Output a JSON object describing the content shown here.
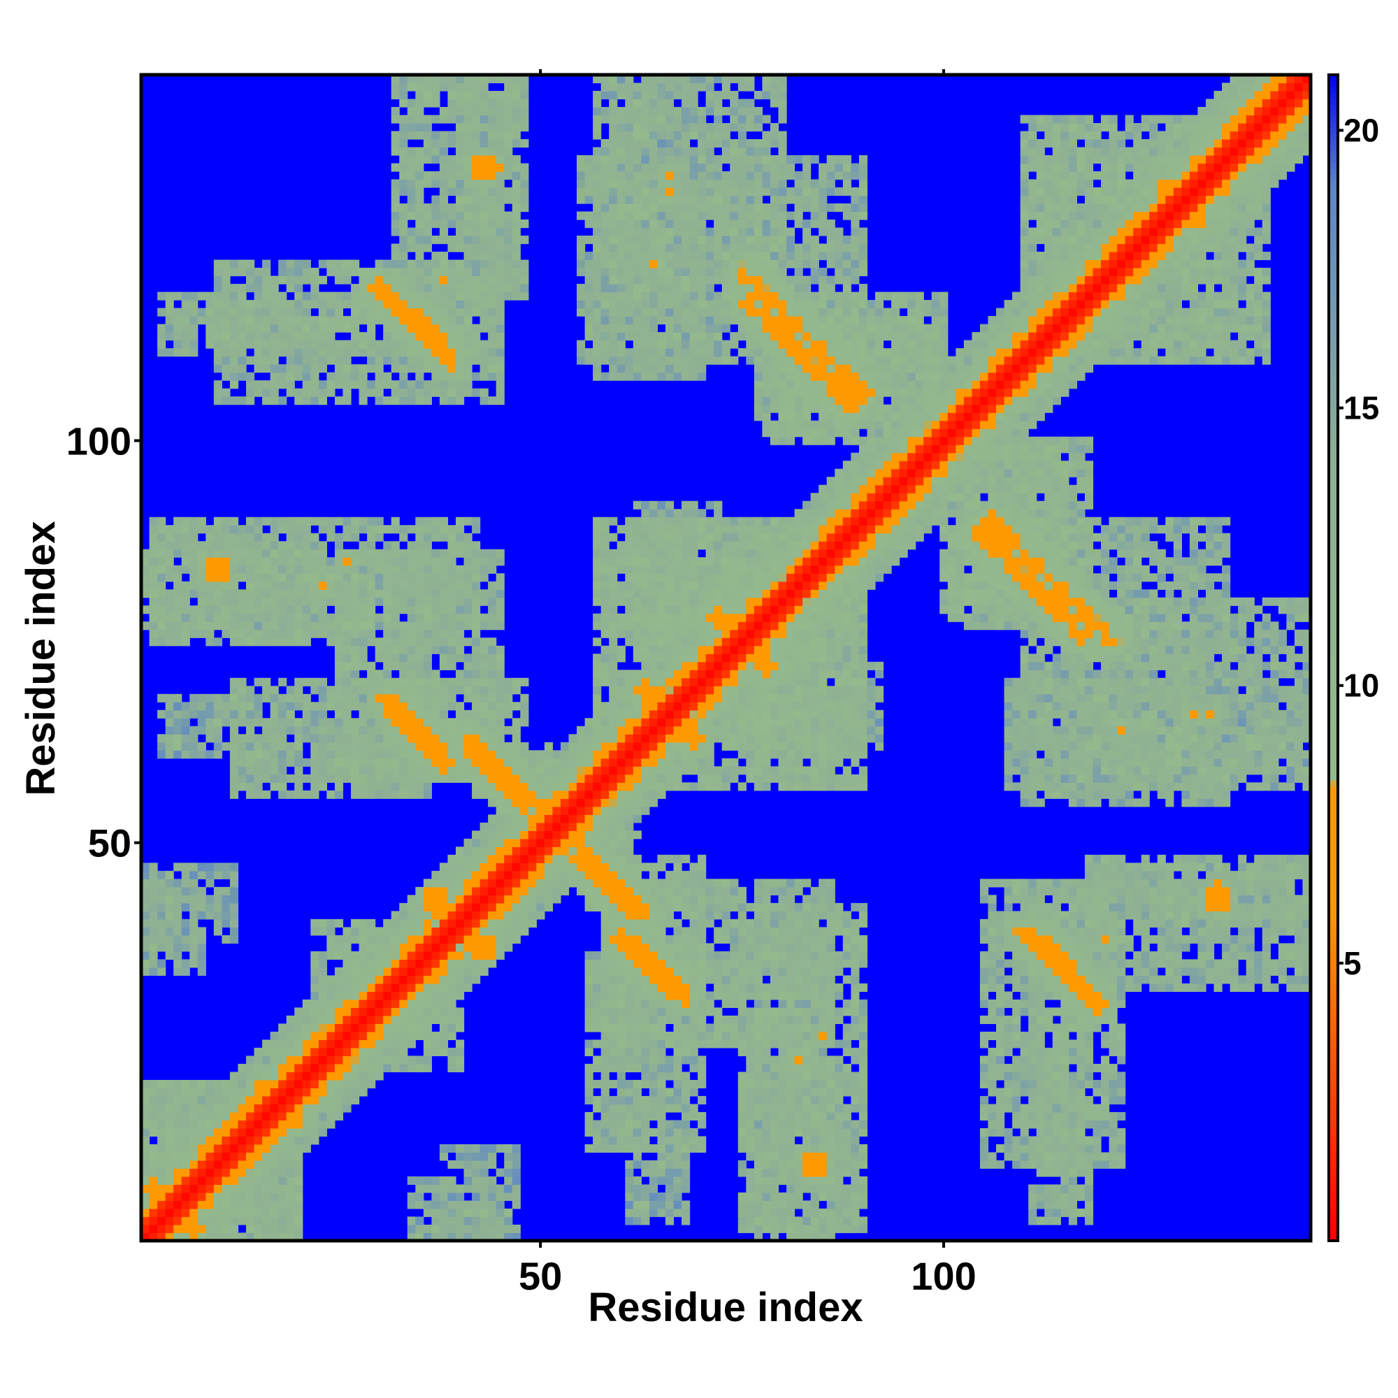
{
  "chart_data": {
    "type": "heatmap",
    "title": "",
    "xlabel": "Residue index",
    "ylabel": "Residue index",
    "n_residues": 145,
    "xlim": [
      0.5,
      145.5
    ],
    "ylim": [
      0.5,
      145.5
    ],
    "x_ticks": [
      {
        "value": 50,
        "label": "50"
      },
      {
        "value": 100,
        "label": "100"
      }
    ],
    "y_ticks": [
      {
        "value": 50,
        "label": "50"
      },
      {
        "value": 100,
        "label": "100"
      }
    ],
    "colorbar": {
      "range": [
        0,
        21
      ],
      "ticks": [
        {
          "value": 5,
          "label": "5"
        },
        {
          "value": 10,
          "label": "10"
        },
        {
          "value": 15,
          "label": "15"
        },
        {
          "value": 20,
          "label": "20"
        }
      ],
      "stops": [
        {
          "value": 0,
          "color": "#ff0000"
        },
        {
          "value": 6,
          "color": "#ff9900"
        },
        {
          "value": 8.2,
          "color": "#ff9900"
        },
        {
          "value": 8.3,
          "color": "#94b98c"
        },
        {
          "value": 14,
          "color": "#8fb094"
        },
        {
          "value": 19,
          "color": "#5b86c9"
        },
        {
          "value": 21,
          "color": "#0000ff"
        }
      ]
    },
    "cap_value": 21,
    "diagonal_band": {
      "center": 0,
      "half_width": 2.2
    },
    "regions": [
      {
        "x": [
          1,
          20
        ],
        "y": [
          1,
          20
        ],
        "level": 12.5
      },
      {
        "x": [
          22,
          38
        ],
        "y": [
          28,
          40
        ],
        "level": 12
      },
      {
        "x": [
          34,
          44
        ],
        "y": [
          1,
          8
        ],
        "level": 14.5
      },
      {
        "x": [
          1,
          12
        ],
        "y": [
          38,
          47
        ],
        "level": 15
      },
      {
        "x": [
          12,
          36
        ],
        "y": [
          56,
          70
        ],
        "level": 13
      },
      {
        "x": [
          3,
          12
        ],
        "y": [
          61,
          68
        ],
        "level": 15
      },
      {
        "x": [
          1,
          45
        ],
        "y": [
          77,
          86
        ],
        "level": 13
      },
      {
        "x": [
          34,
          48
        ],
        "y": [
          59,
          70
        ],
        "level": 11.5
      },
      {
        "x": [
          3,
          45
        ],
        "y": [
          111,
          118
        ],
        "level": 13
      },
      {
        "x": [
          32,
          47
        ],
        "y": [
          118,
          145
        ],
        "level": 13
      },
      {
        "x": [
          57,
          80
        ],
        "y": [
          115,
          145
        ],
        "level": 13.5
      },
      {
        "x": [
          56,
          62
        ],
        "y": [
          42,
          51
        ],
        "level": 11
      },
      {
        "x": [
          58,
          75
        ],
        "y": [
          25,
          45
        ],
        "level": 12.5
      },
      {
        "x": [
          75,
          90
        ],
        "y": [
          2,
          42
        ],
        "level": 12.5
      },
      {
        "x": [
          105,
          122
        ],
        "y": [
          10,
          45
        ],
        "level": 13
      },
      {
        "x": [
          118,
          145
        ],
        "y": [
          40,
          48
        ],
        "level": 13
      },
      {
        "x": [
          108,
          130
        ],
        "y": [
          57,
          70
        ],
        "level": 13.5
      },
      {
        "x": [
          125,
          145
        ],
        "y": [
          59,
          65
        ],
        "level": 14.5
      },
      {
        "x": [
          100,
          115
        ],
        "y": [
          79,
          100
        ],
        "level": 11.5
      },
      {
        "x": [
          110,
          135
        ],
        "y": [
          55,
          90
        ],
        "level": 13.5
      },
      {
        "x": [
          77,
          100
        ],
        "y": [
          101,
          118
        ],
        "level": 12.5
      },
      {
        "x": [
          110,
          135
        ],
        "y": [
          112,
          140
        ],
        "level": 12.5
      },
      {
        "x": [
          57,
          85
        ],
        "y": [
          62,
          90
        ],
        "level": 12
      },
      {
        "x": [
          85,
          92
        ],
        "y": [
          62,
          72
        ],
        "level": 14.5
      },
      {
        "x": [
          62,
          90
        ],
        "y": [
          75,
          90
        ],
        "level": 13
      }
    ],
    "strips": [
      {
        "x": [
          106,
          121
        ],
        "y": [
          75,
          90
        ],
        "value": 6.8,
        "halo": 8.5
      },
      {
        "x": [
          76,
          89
        ],
        "y": [
          104,
          117
        ],
        "value": 6.8,
        "halo": 8.5
      },
      {
        "x": [
          30,
          38
        ],
        "y": [
          112,
          119
        ],
        "value": 6.5,
        "halo": 9
      },
      {
        "x": [
          31,
          37
        ],
        "y": [
          62,
          68
        ],
        "value": 6.5,
        "halo": 9
      },
      {
        "x": [
          41,
          48
        ],
        "y": [
          55,
          62
        ],
        "value": 6.5,
        "halo": 9
      },
      {
        "x": [
          55,
          62
        ],
        "y": [
          42,
          49
        ],
        "value": 6.5,
        "halo": 9
      },
      {
        "x": [
          60,
          66
        ],
        "y": [
          32,
          38
        ],
        "value": 6.5,
        "halo": 9
      },
      {
        "x": [
          110,
          118
        ],
        "y": [
          31,
          39
        ],
        "value": 6.5,
        "halo": 9
      }
    ],
    "spots": [
      {
        "x": 43,
        "y": 134,
        "value": 6.5,
        "r": 1.5
      },
      {
        "x": 38,
        "y": 120,
        "value": 6.0,
        "r": 0.8
      },
      {
        "x": 10,
        "y": 84,
        "value": 6.0,
        "r": 1.5
      },
      {
        "x": 26,
        "y": 85,
        "value": 6.0,
        "r": 0.8
      },
      {
        "x": 84,
        "y": 10,
        "value": 6.0,
        "r": 1.5
      },
      {
        "x": 82,
        "y": 23,
        "value": 6.0,
        "r": 0.8
      },
      {
        "x": 37,
        "y": 43,
        "value": 6.5,
        "r": 1.5
      },
      {
        "x": 42,
        "y": 38,
        "value": 6.0,
        "r": 1.0
      },
      {
        "x": 134,
        "y": 44,
        "value": 6.5,
        "r": 1.2
      },
      {
        "x": 66,
        "y": 133,
        "value": 6.0,
        "r": 0.8
      },
      {
        "x": 64,
        "y": 122,
        "value": 6.0,
        "r": 0.8
      },
      {
        "x": 72,
        "y": 78,
        "value": 6.5,
        "r": 1.2
      },
      {
        "x": 63,
        "y": 69,
        "value": 6.5,
        "r": 1.3
      },
      {
        "x": 123,
        "y": 125,
        "value": 6.5,
        "r": 1.5
      },
      {
        "x": 128,
        "y": 131,
        "value": 6.5,
        "r": 1.5
      },
      {
        "x": 95,
        "y": 93,
        "value": 6.5,
        "r": 1.5
      },
      {
        "x": 19,
        "y": 16,
        "value": 6.5,
        "r": 1.5
      },
      {
        "x": 7,
        "y": 2,
        "value": 6.0,
        "r": 1.2
      },
      {
        "x": 131,
        "y": 66,
        "value": 6.0,
        "r": 0.8
      }
    ]
  }
}
